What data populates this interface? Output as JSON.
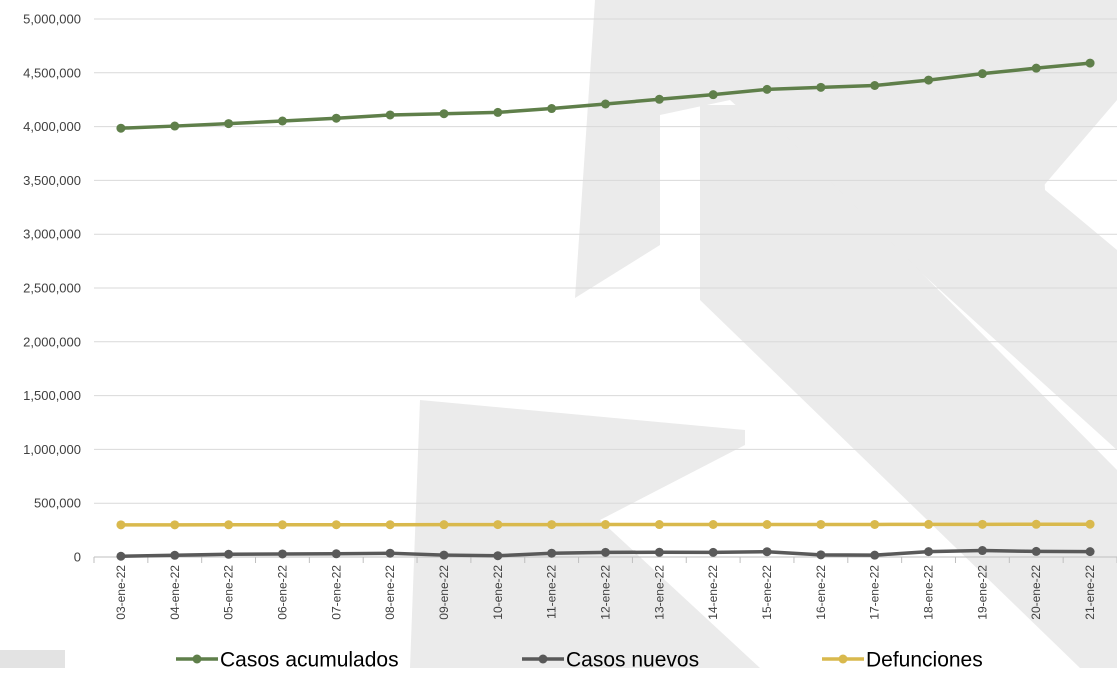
{
  "chart_data": {
    "type": "line",
    "title": "",
    "xlabel": "",
    "ylabel": "",
    "ylim": [
      0,
      5000000
    ],
    "y_ticks": [
      0,
      500000,
      1000000,
      1500000,
      2000000,
      2500000,
      3000000,
      3500000,
      4000000,
      4500000,
      5000000
    ],
    "y_tick_labels": [
      "0",
      "500,000",
      "1,000,000",
      "1,500,000",
      "2,000,000",
      "2,500,000",
      "3,000,000",
      "3,500,000",
      "4,000,000",
      "4,500,000",
      "5,000,000"
    ],
    "grid": true,
    "legend_position": "bottom",
    "categories": [
      "03-ene-22",
      "04-ene-22",
      "05-ene-22",
      "06-ene-22",
      "07-ene-22",
      "08-ene-22",
      "09-ene-22",
      "10-ene-22",
      "11-ene-22",
      "12-ene-22",
      "13-ene-22",
      "14-ene-22",
      "15-ene-22",
      "16-ene-22",
      "17-ene-22",
      "18-ene-22",
      "19-ene-22",
      "20-ene-22",
      "21-ene-22"
    ],
    "series": [
      {
        "name": "Casos acumulados",
        "color": "#5f7f4a",
        "values": [
          3985000,
          4005000,
          4028000,
          4052000,
          4078000,
          4108000,
          4120000,
          4132000,
          4168000,
          4210000,
          4254000,
          4297000,
          4346000,
          4365000,
          4382000,
          4432000,
          4492000,
          4543000,
          4590000
        ]
      },
      {
        "name": "Casos nuevos",
        "color": "#595959",
        "values": [
          7000,
          16000,
          25000,
          28000,
          30000,
          35000,
          18000,
          12000,
          35000,
          43000,
          44000,
          43000,
          49000,
          20000,
          17000,
          50000,
          60000,
          52000,
          50000
        ]
      },
      {
        "name": "Defunciones",
        "color": "#d9b94d",
        "values": [
          299000,
          299000,
          299500,
          299500,
          300000,
          300000,
          300500,
          301000,
          301000,
          301500,
          301500,
          302000,
          302000,
          302500,
          302500,
          303000,
          303500,
          304000,
          304500
        ]
      }
    ]
  }
}
